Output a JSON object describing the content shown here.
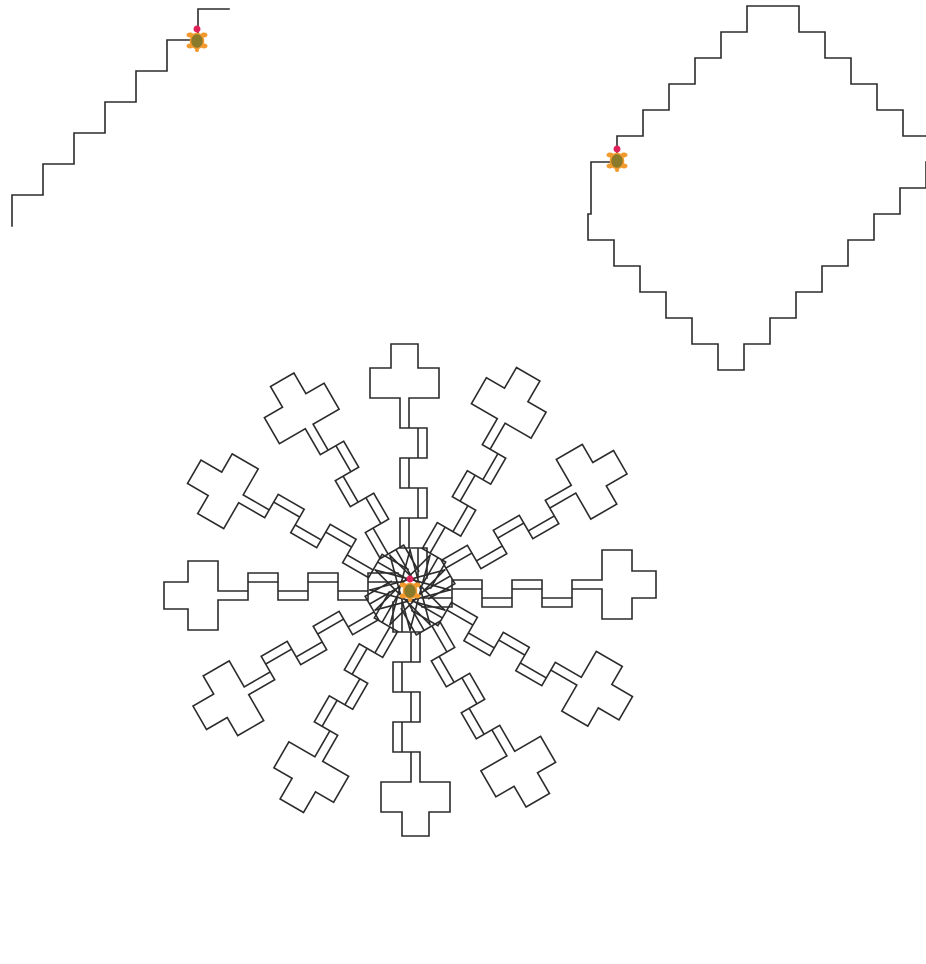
{
  "drawing": {
    "stroke_color": "#2b2b2b",
    "background": "#ffffff",
    "stroke_width": 1.6
  },
  "figures": [
    {
      "name": "staircase",
      "description_visible": false,
      "turtle_icon": "turtle-icon"
    },
    {
      "name": "diamond",
      "turtle_icon": "turtle-icon"
    },
    {
      "name": "rosette",
      "copies": 12,
      "turtle_icon": "turtle-icon"
    }
  ],
  "turtle": {
    "shell_color": "#8a7a2a",
    "body_color": "#f29a2e",
    "head_color": "#e0215a"
  }
}
